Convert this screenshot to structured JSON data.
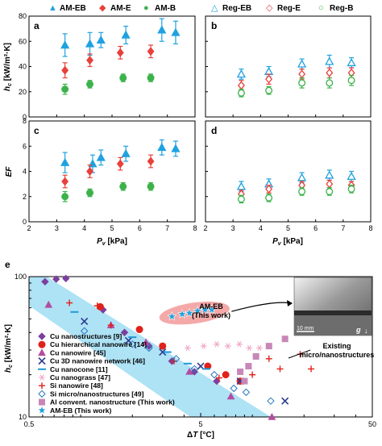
{
  "colors": {
    "am_eb": "#1fa2e0",
    "am_e": "#e8413b",
    "am_b": "#3cb24a",
    "band": "#aee2f5",
    "ellipse": "#f29a9a",
    "s_cu_nanostructures": "#7b3f9e",
    "s_cu_hier": "#e0221b",
    "s_cu_nanowire": "#b34da0",
    "s_cu_3d": "#2a3a8f",
    "s_cu_nanocone": "#1f9ad6",
    "s_cu_nanograss": "#f0a6c8",
    "s_si_nanowire": "#e0221b",
    "s_si_micro": "#2a78c0",
    "s_al": "#c887b8",
    "s_am_eb": "#1fa2e0"
  },
  "top_legend": {
    "am_eb": "AM-EB",
    "am_e": "AM-E",
    "am_b": "AM-B",
    "reg_eb": "Reg-EB",
    "reg_e": "Reg-E",
    "reg_b": "Reg-B"
  },
  "chart_data": [
    {
      "panel": "a",
      "type": "scatter",
      "ylabel": "h_c [kW/m²·K]",
      "xlim": [
        2,
        8
      ],
      "ylim": [
        0,
        80
      ],
      "yticks": [
        0,
        20,
        40,
        60,
        80
      ],
      "grid": false,
      "series": [
        {
          "name": "AM-EB",
          "points": [
            [
              3.3,
              57,
              9
            ],
            [
              4.2,
              58,
              9
            ],
            [
              4.6,
              61,
              6
            ],
            [
              5.5,
              65,
              7
            ],
            [
              6.8,
              69,
              9
            ],
            [
              7.3,
              67,
              9
            ]
          ]
        },
        {
          "name": "AM-E",
          "points": [
            [
              3.3,
              37,
              6
            ],
            [
              4.2,
              45,
              5
            ],
            [
              5.3,
              51,
              5
            ],
            [
              6.4,
              52,
              5
            ]
          ]
        },
        {
          "name": "AM-B",
          "points": [
            [
              3.3,
              22,
              4
            ],
            [
              4.2,
              26,
              3
            ],
            [
              5.4,
              31,
              3
            ],
            [
              6.4,
              31,
              3
            ]
          ]
        }
      ]
    },
    {
      "panel": "b",
      "type": "scatter",
      "xlim": [
        2,
        8
      ],
      "ylim": [
        0,
        80
      ],
      "yticks": [
        0,
        20,
        40,
        60,
        80
      ],
      "grid": false,
      "series": [
        {
          "name": "Reg-EB",
          "points": [
            [
              3.3,
              34,
              4
            ],
            [
              4.3,
              36,
              4
            ],
            [
              5.5,
              42,
              4
            ],
            [
              6.5,
              44,
              5
            ],
            [
              7.3,
              43,
              4
            ]
          ]
        },
        {
          "name": "Reg-E",
          "points": [
            [
              3.3,
              25,
              4
            ],
            [
              4.3,
              30,
              4
            ],
            [
              5.5,
              34,
              4
            ],
            [
              6.5,
              35,
              4
            ],
            [
              7.3,
              35,
              4
            ]
          ]
        },
        {
          "name": "Reg-B",
          "points": [
            [
              3.3,
              19,
              3
            ],
            [
              4.3,
              21,
              3
            ],
            [
              5.5,
              27,
              4
            ],
            [
              6.5,
              27,
              4
            ],
            [
              7.3,
              29,
              4
            ]
          ]
        }
      ]
    },
    {
      "panel": "c",
      "type": "scatter",
      "ylabel": "EF",
      "xlim": [
        2,
        8
      ],
      "ylim": [
        0,
        8
      ],
      "yticks": [
        0,
        2,
        4,
        6,
        8
      ],
      "grid": false,
      "series": [
        {
          "name": "AM-EB",
          "points": [
            [
              3.3,
              4.7,
              0.8
            ],
            [
              4.3,
              4.6,
              0.7
            ],
            [
              4.6,
              5.1,
              0.6
            ],
            [
              5.5,
              5.4,
              0.6
            ],
            [
              6.8,
              5.9,
              0.6
            ],
            [
              7.3,
              5.8,
              0.6
            ]
          ]
        },
        {
          "name": "AM-E",
          "points": [
            [
              3.3,
              3.2,
              0.5
            ],
            [
              4.2,
              4.0,
              0.5
            ],
            [
              5.3,
              4.6,
              0.5
            ],
            [
              6.4,
              4.8,
              0.5
            ]
          ]
        },
        {
          "name": "AM-B",
          "points": [
            [
              3.3,
              2.0,
              0.4
            ],
            [
              4.2,
              2.3,
              0.3
            ],
            [
              5.4,
              2.8,
              0.3
            ],
            [
              6.4,
              2.8,
              0.3
            ]
          ]
        }
      ]
    },
    {
      "panel": "d",
      "type": "scatter",
      "xlim": [
        2,
        8
      ],
      "ylim": [
        0,
        8
      ],
      "yticks": [
        0,
        2,
        4,
        6,
        8
      ],
      "grid": false,
      "series": [
        {
          "name": "Reg-EB",
          "points": [
            [
              3.3,
              2.8,
              0.4
            ],
            [
              4.3,
              3.0,
              0.4
            ],
            [
              5.5,
              3.5,
              0.4
            ],
            [
              6.5,
              3.7,
              0.4
            ],
            [
              7.3,
              3.6,
              0.4
            ]
          ]
        },
        {
          "name": "Reg-E",
          "points": [
            [
              3.3,
              2.2,
              0.3
            ],
            [
              4.3,
              2.6,
              0.3
            ],
            [
              5.5,
              2.9,
              0.3
            ],
            [
              6.5,
              3.0,
              0.3
            ],
            [
              7.3,
              2.9,
              0.3
            ]
          ]
        },
        {
          "name": "Reg-B",
          "points": [
            [
              3.3,
              1.8,
              0.3
            ],
            [
              4.3,
              1.9,
              0.3
            ],
            [
              5.5,
              2.4,
              0.3
            ],
            [
              6.5,
              2.4,
              0.3
            ],
            [
              7.3,
              2.6,
              0.3
            ]
          ]
        }
      ]
    },
    {
      "panel": "e",
      "type": "scatter",
      "log_x": true,
      "log_y": true,
      "xlabel": "ΔT [°C]",
      "ylabel": "h_c [kW/m²·K]",
      "xlim": [
        0.5,
        50
      ],
      "ylim": [
        10,
        100
      ],
      "xticks": [
        "0.5",
        "5",
        "50"
      ],
      "yticks": [
        "10",
        "100"
      ],
      "grid": false,
      "band_label": "Existing micro/nanostructures",
      "am_eb_label": [
        "AM-EB",
        "(This work)"
      ],
      "inset_scale": "10 mm",
      "inset_gravity": "g",
      "series": [
        {
          "name": "Cu nanostructures [9]",
          "points": [
            [
              0.62,
              92
            ],
            [
              0.72,
              96
            ],
            [
              0.82,
              97
            ],
            [
              1.35,
              58
            ],
            [
              1.8,
              40
            ],
            [
              2.5,
              32
            ],
            [
              3.4,
              25
            ],
            [
              4.6,
              21
            ],
            [
              6.2,
              18
            ]
          ]
        },
        {
          "name": "Cu hierarchical nanowire [14]",
          "points": [
            [
              1.3,
              61
            ],
            [
              2.2,
              42
            ],
            [
              3.0,
              32
            ],
            [
              5.5,
              23
            ],
            [
              7.0,
              20
            ],
            [
              8.5,
              18
            ]
          ]
        },
        {
          "name": "Cu nanowire [45]",
          "points": [
            [
              0.65,
              63
            ],
            [
              1.5,
              45
            ],
            [
              2.4,
              34
            ],
            [
              4.3,
              21
            ],
            [
              7.5,
              14
            ],
            [
              13.0,
              10
            ]
          ]
        },
        {
          "name": "Cu 3D nanowire network [46]",
          "points": [
            [
              1.05,
              48
            ],
            [
              1.9,
              35
            ],
            [
              3.0,
              29
            ],
            [
              5.0,
              23
            ],
            [
              8.5,
              18
            ],
            [
              15.5,
              13
            ]
          ]
        },
        {
          "name": "Cu nanocone [11]",
          "points": [
            [
              0.92,
              56
            ],
            [
              2.0,
              37
            ],
            [
              3.2,
              29
            ],
            [
              4.2,
              24
            ],
            [
              5.4,
              22
            ]
          ]
        },
        {
          "name": "Cu nanograss [47]",
          "points": [
            [
              4.2,
              31
            ],
            [
              5.2,
              32
            ],
            [
              6.2,
              33
            ],
            [
              7.2,
              32
            ],
            [
              8.4,
              33
            ],
            [
              9.6,
              31
            ],
            [
              11.0,
              31
            ]
          ]
        },
        {
          "name": "Si nanowire [48]",
          "points": [
            [
              0.86,
              65
            ],
            [
              1.25,
              62
            ],
            [
              1.5,
              45
            ],
            [
              3.5,
              25
            ],
            [
              6.4,
              19
            ],
            [
              10.0,
              20
            ],
            [
              12.5,
              26
            ],
            [
              14.5,
              22
            ],
            [
              19.0,
              28
            ],
            [
              22.0,
              22
            ]
          ]
        },
        {
          "name": "Si micro/nanostructures [49]",
          "points": [
            [
              1.05,
              41
            ],
            [
              2.0,
              33
            ],
            [
              2.5,
              31
            ],
            [
              3.6,
              26
            ],
            [
              4.6,
              22
            ],
            [
              6.0,
              20
            ],
            [
              7.8,
              16
            ],
            [
              9.2,
              15
            ],
            [
              12.8,
              13
            ]
          ]
        },
        {
          "name": "Al convent. nanostructure (This work)",
          "points": [
            [
              8.5,
              21
            ],
            [
              9.5,
              23
            ],
            [
              10.5,
              27
            ],
            [
              12.5,
              32
            ],
            [
              15.5,
              36
            ],
            [
              9.0,
              18
            ]
          ]
        },
        {
          "name": "AM-EB (This work)",
          "points": [
            [
              3.4,
              52
            ],
            [
              3.9,
              54
            ],
            [
              4.3,
              55
            ],
            [
              4.8,
              57
            ],
            [
              5.3,
              58
            ],
            [
              5.8,
              58
            ]
          ]
        }
      ]
    }
  ],
  "axis": {
    "ticks_x_top": [
      "2",
      "3",
      "4",
      "5",
      "6",
      "7",
      "8"
    ],
    "xlabel_top": "P_v [kPa]"
  }
}
